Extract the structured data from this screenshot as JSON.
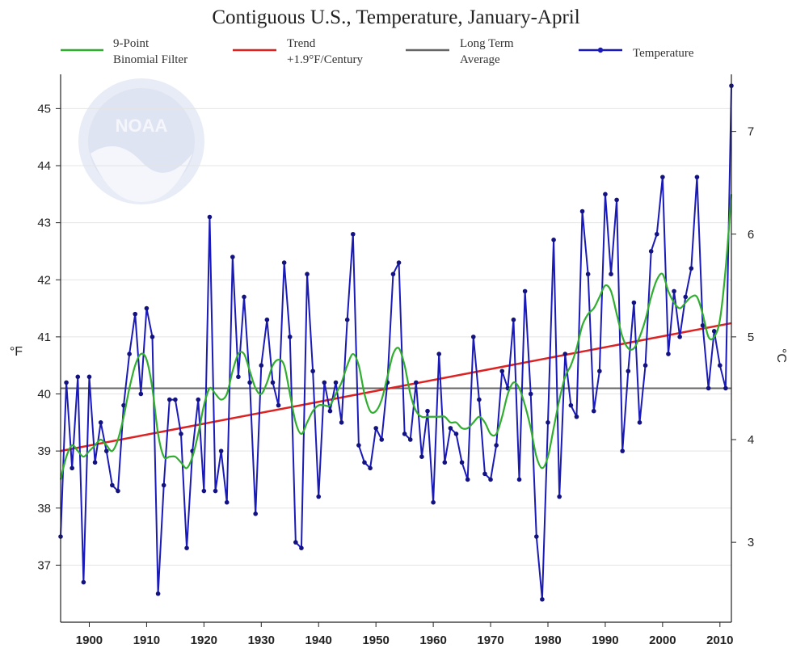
{
  "colors": {
    "temperature": "#1a1ab8",
    "filter": "#2fae2f",
    "trend": "#dd2222",
    "average": "#666666",
    "grid": "#e4e4e4",
    "logo": "#dfe4f3"
  },
  "logo": {
    "text": "NOAA",
    "icon": "noaa-logo-watermark"
  },
  "chart_data": {
    "type": "line",
    "title": "Contiguous U.S., Temperature, January-April",
    "ylabel_left": "°F",
    "ylabel_right": "°C",
    "legend": {
      "position": "top",
      "entries": [
        {
          "key": "filter",
          "line1": "9-Point",
          "line2": "Binomial Filter"
        },
        {
          "key": "trend",
          "line1": "Trend",
          "line2": "+1.9°F/Century"
        },
        {
          "key": "average",
          "line1": "Long Term",
          "line2": "Average"
        },
        {
          "key": "temperature",
          "line1": "Temperature",
          "line2": ""
        }
      ]
    },
    "xlim": [
      1895,
      2012
    ],
    "ylim": [
      36.0,
      45.6
    ],
    "x_ticks": [
      "1900",
      "1910",
      "1920",
      "1930",
      "1940",
      "1950",
      "1960",
      "1970",
      "1980",
      "1990",
      "2000",
      "2010"
    ],
    "y_ticks_left": [
      "37",
      "38",
      "39",
      "40",
      "41",
      "42",
      "43",
      "44",
      "45"
    ],
    "y_ticks_right": [
      "3",
      "4",
      "5",
      "6",
      "7"
    ],
    "long_term_average": 40.1,
    "trend": {
      "rate": "+1.9°F/Century",
      "start": [
        1895,
        39.0
      ],
      "end": [
        2012,
        41.24
      ]
    },
    "series": [
      {
        "name": "Temperature",
        "x_start": 1895,
        "values": [
          37.5,
          40.2,
          38.7,
          40.3,
          36.7,
          40.3,
          38.8,
          39.5,
          39.0,
          38.4,
          38.3,
          39.8,
          40.7,
          41.4,
          40.0,
          41.5,
          41.0,
          36.5,
          38.4,
          39.9,
          39.9,
          39.3,
          37.3,
          39.0,
          39.9,
          38.3,
          43.1,
          38.3,
          39.0,
          38.1,
          42.4,
          40.3,
          41.7,
          40.2,
          37.9,
          40.5,
          41.3,
          40.2,
          39.8,
          42.3,
          41.0,
          37.4,
          37.3,
          42.1,
          40.4,
          38.2,
          40.2,
          39.7,
          40.2,
          39.5,
          41.3,
          42.8,
          39.1,
          38.8,
          38.7,
          39.4,
          39.2,
          40.2,
          42.1,
          42.3,
          39.3,
          39.2,
          40.2,
          38.9,
          39.7,
          38.1,
          40.7,
          38.8,
          39.4,
          39.3,
          38.8,
          38.5,
          41.0,
          39.9,
          38.6,
          38.5,
          39.1,
          40.4,
          40.1,
          41.3,
          38.5,
          41.8,
          40.0,
          37.5,
          36.4,
          39.5,
          42.7,
          38.2,
          40.7,
          39.8,
          39.6,
          43.2,
          42.1,
          39.7,
          40.4,
          43.5,
          42.1,
          43.4,
          39.0,
          40.4,
          41.6,
          39.5,
          40.5,
          42.5,
          42.8,
          43.8,
          40.7,
          41.8,
          41.0,
          41.7,
          42.2,
          43.8,
          41.2,
          40.1,
          41.1,
          40.5,
          40.1,
          45.4
        ]
      },
      {
        "name": "9-Point Binomial Filter",
        "x_start": 1895,
        "values": [
          38.5,
          38.9,
          39.1,
          39.0,
          38.9,
          39.0,
          39.1,
          39.2,
          39.1,
          39.0,
          39.2,
          39.6,
          40.1,
          40.5,
          40.7,
          40.6,
          40.1,
          39.3,
          38.9,
          38.9,
          38.9,
          38.8,
          38.7,
          38.9,
          39.3,
          39.8,
          40.1,
          40.0,
          39.9,
          40.0,
          40.4,
          40.7,
          40.7,
          40.4,
          40.1,
          40.0,
          40.2,
          40.5,
          40.6,
          40.5,
          40.0,
          39.5,
          39.3,
          39.5,
          39.7,
          39.8,
          39.8,
          39.8,
          40.0,
          40.2,
          40.5,
          40.7,
          40.5,
          40.0,
          39.7,
          39.7,
          39.9,
          40.3,
          40.7,
          40.8,
          40.5,
          40.0,
          39.7,
          39.6,
          39.6,
          39.6,
          39.6,
          39.6,
          39.5,
          39.5,
          39.4,
          39.4,
          39.5,
          39.6,
          39.5,
          39.3,
          39.3,
          39.6,
          40.0,
          40.2,
          40.1,
          39.8,
          39.4,
          38.9,
          38.7,
          38.9,
          39.4,
          39.9,
          40.3,
          40.5,
          40.8,
          41.2,
          41.4,
          41.5,
          41.7,
          41.9,
          41.8,
          41.4,
          41.0,
          40.8,
          40.8,
          41.0,
          41.3,
          41.7,
          42.0,
          42.1,
          41.8,
          41.6,
          41.5,
          41.6,
          41.7,
          41.7,
          41.4,
          41.0,
          41.0,
          41.3,
          42.2,
          43.5
        ]
      },
      {
        "name": "Long Term Average",
        "values": [
          40.1
        ]
      },
      {
        "name": "Trend +1.9°F/Century",
        "values": [
          39.0,
          41.24
        ]
      }
    ]
  }
}
